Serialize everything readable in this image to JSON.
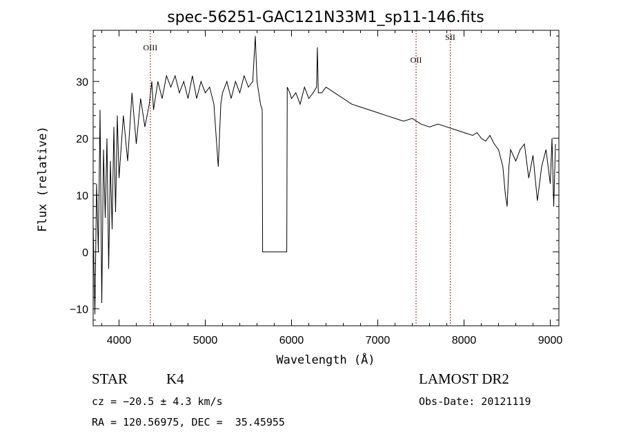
{
  "chart_data": {
    "type": "line",
    "title": "spec-56251-GAC121N33M1_sp11-146.fits",
    "xlabel": "Wavelength (Å)",
    "ylabel": "Flux (relative)",
    "xlim": [
      3700,
      9100
    ],
    "ylim": [
      -13,
      39
    ],
    "xticks": [
      4000,
      5000,
      6000,
      7000,
      8000,
      9000
    ],
    "yticks": [
      -10,
      0,
      10,
      20,
      30
    ],
    "grid": false,
    "series": [
      {
        "color": "#000000",
        "x": [
          3700,
          3720,
          3740,
          3760,
          3780,
          3800,
          3820,
          3840,
          3860,
          3880,
          3900,
          3920,
          3940,
          3960,
          3980,
          4000,
          4050,
          4100,
          4150,
          4200,
          4250,
          4300,
          4350,
          4380,
          4400,
          4450,
          4500,
          4550,
          4600,
          4650,
          4700,
          4750,
          4800,
          4850,
          4900,
          4950,
          5000,
          5050,
          5100,
          5150,
          5180,
          5200,
          5250,
          5300,
          5350,
          5400,
          5450,
          5500,
          5550,
          5580,
          5600,
          5620,
          5640,
          5660,
          5665,
          5700,
          5800,
          5900,
          5945,
          5950,
          5980,
          6000,
          6050,
          6100,
          6150,
          6200,
          6250,
          6290,
          6300,
          6310,
          6350,
          6400,
          6500,
          6600,
          6700,
          6800,
          6900,
          7000,
          7100,
          7200,
          7300,
          7400,
          7500,
          7600,
          7700,
          7800,
          7900,
          8000,
          8100,
          8150,
          8200,
          8250,
          8300,
          8350,
          8400,
          8450,
          8480,
          8500,
          8520,
          8540,
          8600,
          8650,
          8700,
          8750,
          8800,
          8850,
          8900,
          8950,
          9000,
          9020,
          9040,
          9060
        ],
        "y": [
          5,
          -11,
          12,
          0,
          25,
          -9,
          18,
          6,
          20,
          -3,
          16,
          4,
          22,
          7,
          24,
          13,
          24,
          16,
          28,
          19,
          27,
          22,
          26,
          30,
          25,
          30,
          27,
          31,
          29,
          31,
          28,
          30,
          27,
          31,
          27,
          30,
          28,
          29,
          26,
          15,
          26,
          28,
          30,
          27,
          30,
          28,
          31,
          29,
          30,
          38,
          30,
          28,
          26,
          25,
          0,
          0,
          0,
          0,
          0,
          29,
          28,
          27,
          28,
          26,
          29,
          27,
          28,
          29,
          36,
          28,
          28,
          29,
          28,
          27,
          26,
          25.5,
          25,
          24.5,
          24,
          23.5,
          23,
          23.5,
          22.5,
          22,
          22.5,
          22,
          21.5,
          21,
          20.5,
          21,
          20,
          19.5,
          20.5,
          19,
          18,
          15,
          10,
          8,
          15,
          18,
          16,
          18,
          19,
          13,
          17,
          9,
          15,
          18,
          12,
          20,
          8,
          19
        ]
      }
    ],
    "reference_lines": [
      {
        "label": "OIII",
        "x": 4363,
        "color": "#a11d1d",
        "label_y": 35.5
      },
      {
        "label": "OII",
        "x": 7444,
        "color": "#a11d1d",
        "label_y": 33.3
      },
      {
        "label": "SII",
        "x": 7840,
        "color": "#a11d1d",
        "label_y": 37.3
      }
    ]
  },
  "info": {
    "object_class": "STAR",
    "subclass": "K4",
    "survey": "LAMOST DR2",
    "cz": "cz = −20.5 ± 4.3 km/s",
    "obs_date": "Obs-Date: 20121119",
    "coords": "RA = 120.56975, DEC =  35.45955"
  }
}
